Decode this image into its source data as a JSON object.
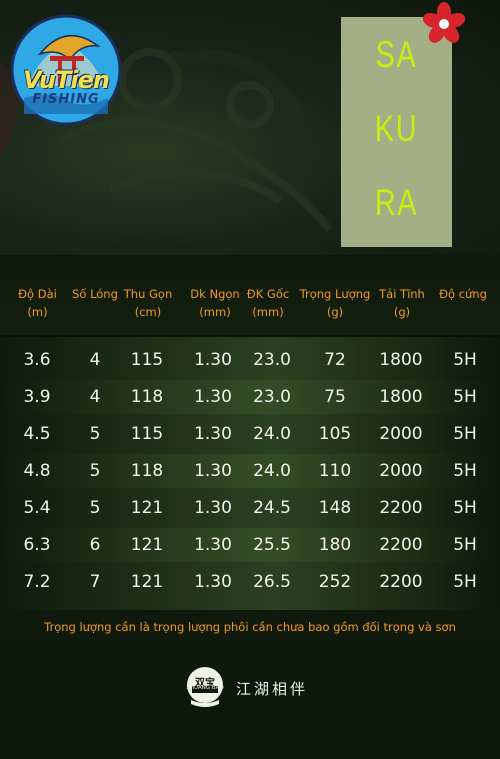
{
  "logo": {
    "text": "VuTien",
    "sub": "FISHING"
  },
  "title": {
    "lines": [
      "SA",
      "KU",
      "RA"
    ]
  },
  "table": {
    "headers": [
      {
        "label": "Độ Dài",
        "unit": "(m)"
      },
      {
        "label": "Số Lóng",
        "unit": ""
      },
      {
        "label": "Thu Gọn",
        "unit": "(cm)"
      },
      {
        "label": "Dk Ngọn",
        "unit": "(mm)"
      },
      {
        "label": "ĐK Gốc",
        "unit": "(mm)"
      },
      {
        "label": "Trọng Lượng",
        "unit": "(g)"
      },
      {
        "label": "Tải Tĩnh",
        "unit": "(g)"
      },
      {
        "label": "Độ cứng",
        "unit": ""
      }
    ],
    "rows": [
      [
        "3.6",
        "4",
        "115",
        "1.30",
        "23.0",
        "72",
        "1800",
        "5H"
      ],
      [
        "3.9",
        "4",
        "118",
        "1.30",
        "23.0",
        "75",
        "1800",
        "5H"
      ],
      [
        "4.5",
        "5",
        "115",
        "1.30",
        "24.0",
        "105",
        "2000",
        "5H"
      ],
      [
        "4.8",
        "5",
        "118",
        "1.30",
        "24.0",
        "110",
        "2000",
        "5H"
      ],
      [
        "5.4",
        "5",
        "121",
        "1.30",
        "24.5",
        "148",
        "2200",
        "5H"
      ],
      [
        "6.3",
        "6",
        "121",
        "1.30",
        "25.5",
        "180",
        "2200",
        "5H"
      ],
      [
        "7.2",
        "7",
        "121",
        "1.30",
        "26.5",
        "252",
        "2200",
        "5H"
      ]
    ]
  },
  "note": "Trọng lượng cần là trọng lượng phôi cần chưa bao gồm đối trọng và sơn",
  "brand": {
    "badge_top": "双宝",
    "badge_bottom": "SHUANG BAO",
    "slogan": "江湖相伴"
  },
  "colors": {
    "accent": "#f39a1d",
    "title_green": "#c9ee12",
    "title_box": "#a4af85"
  }
}
